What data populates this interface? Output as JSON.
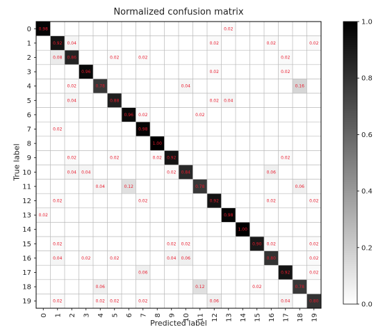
{
  "chart_data": {
    "type": "heatmap",
    "title": "Normalized confusion matrix",
    "xlabel": "Predicted label",
    "ylabel": "True label",
    "labels": [
      "0",
      "1",
      "2",
      "3",
      "4",
      "5",
      "6",
      "7",
      "8",
      "9",
      "10",
      "11",
      "12",
      "13",
      "14",
      "15",
      "16",
      "17",
      "18",
      "19"
    ],
    "cells": [
      [
        0,
        0,
        "0.98"
      ],
      [
        0,
        13,
        "0.02"
      ],
      [
        1,
        1,
        "0.92"
      ],
      [
        1,
        2,
        "0.04"
      ],
      [
        1,
        12,
        "0.02"
      ],
      [
        1,
        16,
        "0.02"
      ],
      [
        1,
        19,
        "0.02"
      ],
      [
        2,
        1,
        "0.08"
      ],
      [
        2,
        2,
        "0.86"
      ],
      [
        2,
        5,
        "0.02"
      ],
      [
        2,
        7,
        "0.02"
      ],
      [
        2,
        17,
        "0.02"
      ],
      [
        3,
        3,
        "0.96"
      ],
      [
        3,
        12,
        "0.02"
      ],
      [
        3,
        17,
        "0.02"
      ],
      [
        4,
        2,
        "0.02"
      ],
      [
        4,
        4,
        "0.78"
      ],
      [
        4,
        10,
        "0.04"
      ],
      [
        4,
        18,
        "0.16"
      ],
      [
        5,
        2,
        "0.04"
      ],
      [
        5,
        5,
        "0.88"
      ],
      [
        5,
        12,
        "0.02"
      ],
      [
        5,
        13,
        "0.04"
      ],
      [
        6,
        6,
        "0.96"
      ],
      [
        6,
        7,
        "0.02"
      ],
      [
        6,
        11,
        "0.02"
      ],
      [
        7,
        1,
        "0.02"
      ],
      [
        7,
        7,
        "0.98"
      ],
      [
        8,
        8,
        "1.00"
      ],
      [
        9,
        2,
        "0.02"
      ],
      [
        9,
        5,
        "0.02"
      ],
      [
        9,
        8,
        "0.02"
      ],
      [
        9,
        9,
        "0.92"
      ],
      [
        9,
        17,
        "0.02"
      ],
      [
        10,
        2,
        "0.04"
      ],
      [
        10,
        3,
        "0.04"
      ],
      [
        10,
        9,
        "0.02"
      ],
      [
        10,
        10,
        "0.84"
      ],
      [
        10,
        16,
        "0.06"
      ],
      [
        11,
        4,
        "0.04"
      ],
      [
        11,
        6,
        "0.12"
      ],
      [
        11,
        11,
        "0.78"
      ],
      [
        11,
        18,
        "0.06"
      ],
      [
        12,
        1,
        "0.02"
      ],
      [
        12,
        7,
        "0.02"
      ],
      [
        12,
        12,
        "0.92"
      ],
      [
        12,
        16,
        "0.02"
      ],
      [
        12,
        19,
        "0.02"
      ],
      [
        13,
        0,
        "0.02"
      ],
      [
        13,
        13,
        "0.98"
      ],
      [
        14,
        14,
        "1.00"
      ],
      [
        15,
        1,
        "0.02"
      ],
      [
        15,
        9,
        "0.02"
      ],
      [
        15,
        10,
        "0.02"
      ],
      [
        15,
        15,
        "0.90"
      ],
      [
        15,
        16,
        "0.02"
      ],
      [
        15,
        19,
        "0.02"
      ],
      [
        16,
        1,
        "0.04"
      ],
      [
        16,
        3,
        "0.02"
      ],
      [
        16,
        5,
        "0.02"
      ],
      [
        16,
        9,
        "0.04"
      ],
      [
        16,
        10,
        "0.06"
      ],
      [
        16,
        16,
        "0.80"
      ],
      [
        16,
        19,
        "0.02"
      ],
      [
        17,
        7,
        "0.06"
      ],
      [
        17,
        17,
        "0.92"
      ],
      [
        17,
        19,
        "0.02"
      ],
      [
        18,
        4,
        "0.06"
      ],
      [
        18,
        11,
        "0.12"
      ],
      [
        18,
        15,
        "0.02"
      ],
      [
        18,
        18,
        "0.78"
      ],
      [
        19,
        1,
        "0.02"
      ],
      [
        19,
        4,
        "0.02"
      ],
      [
        19,
        5,
        "0.02"
      ],
      [
        19,
        7,
        "0.02"
      ],
      [
        19,
        12,
        "0.06"
      ],
      [
        19,
        17,
        "0.04"
      ],
      [
        19,
        19,
        "0.80"
      ]
    ],
    "colorbar": {
      "range": [
        0,
        1
      ],
      "ticks": [
        "0.0",
        "0.2",
        "0.4",
        "0.6",
        "0.8",
        "1.0"
      ]
    },
    "cmap": "greys",
    "annotation_color": "#e8192c",
    "grid": true
  }
}
